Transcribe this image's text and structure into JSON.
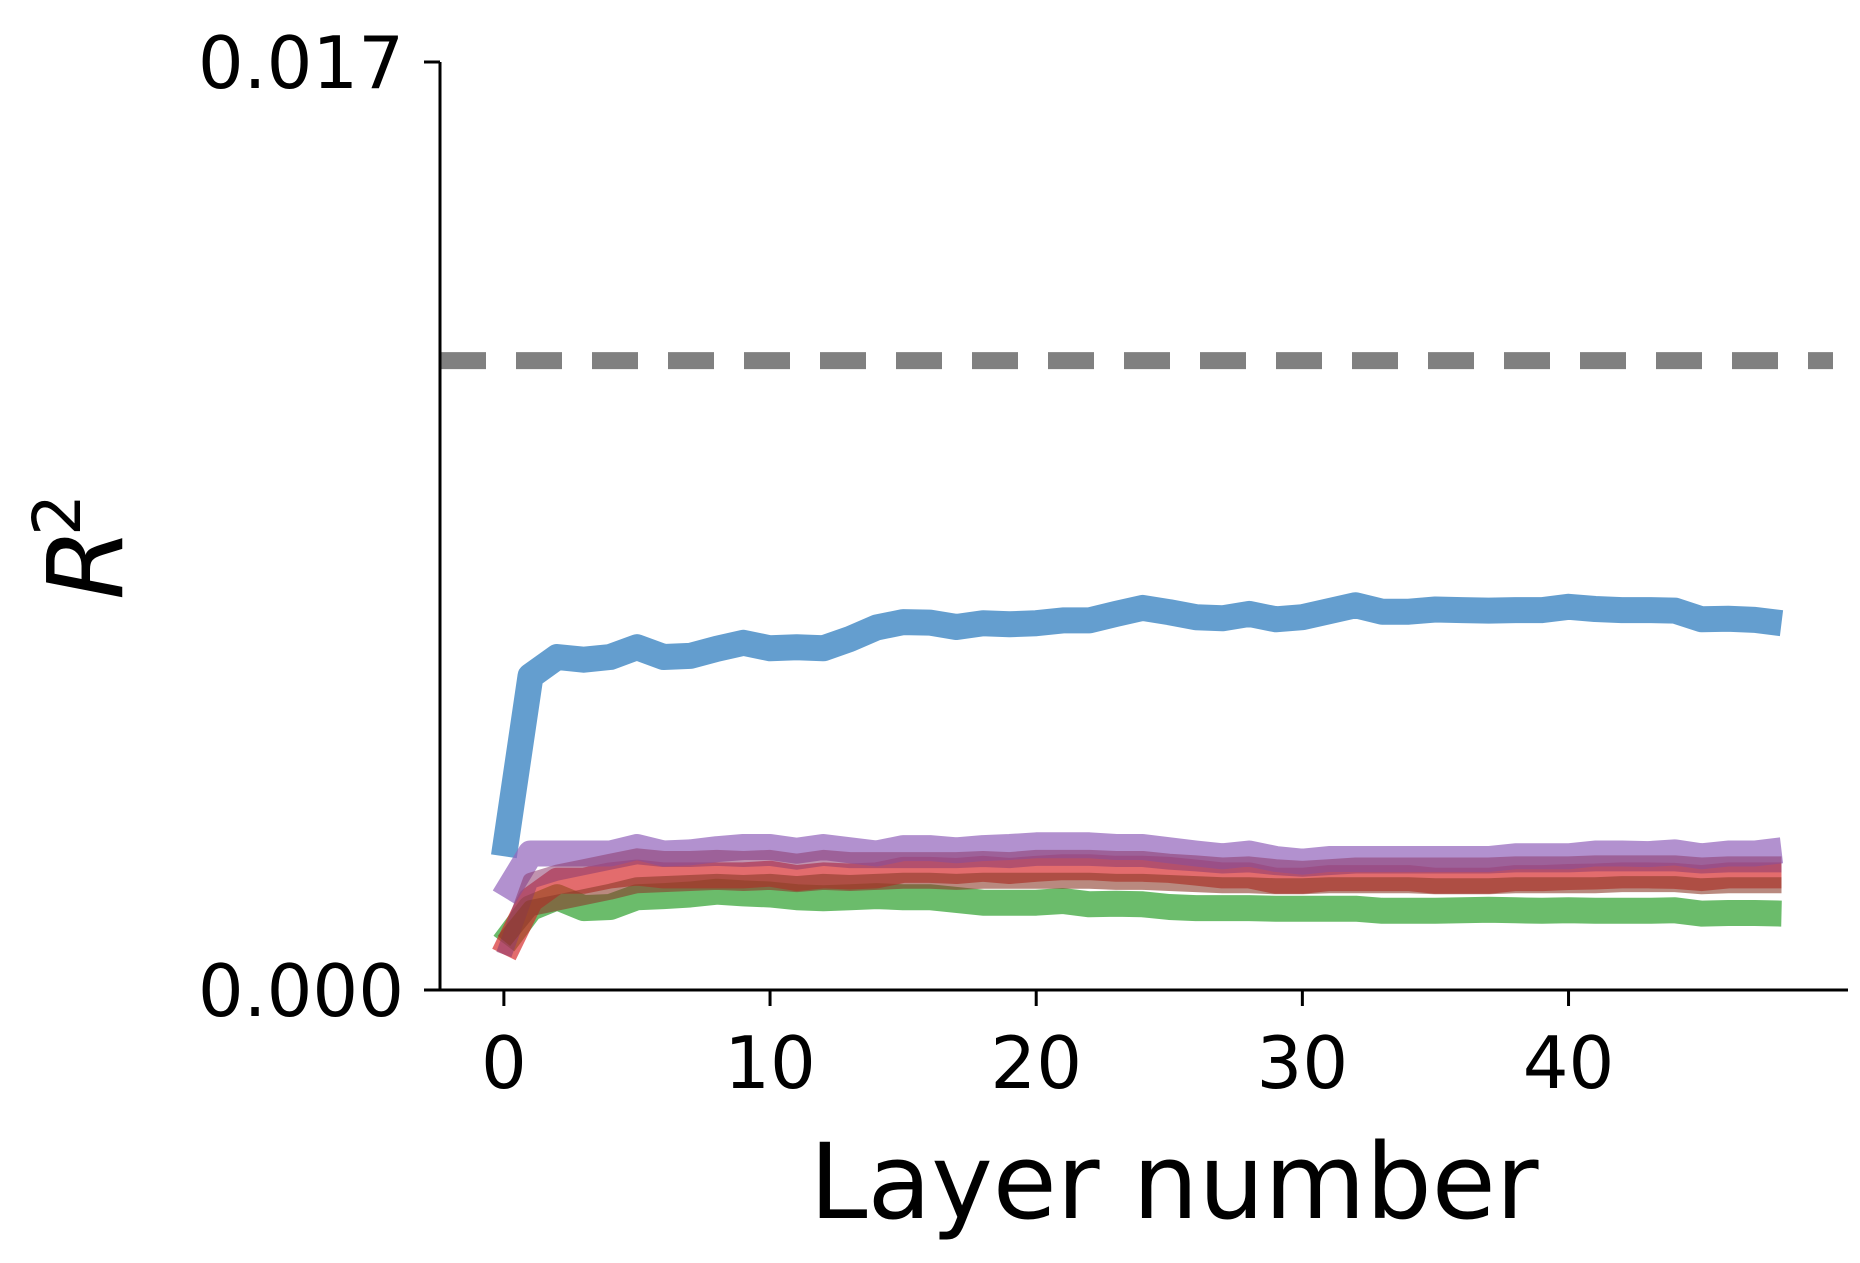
{
  "chart_data": {
    "type": "line",
    "title": "",
    "xlabel": "Layer number",
    "ylabel": {
      "base": "R",
      "sup": "2"
    },
    "xlim": [
      -2.4,
      50.5
    ],
    "ylim": [
      0.0,
      0.017
    ],
    "xticks": [
      0,
      10,
      20,
      30,
      40
    ],
    "xtick_labels": [
      "0",
      "10",
      "20",
      "30",
      "40"
    ],
    "yticks": [
      0.0,
      0.017
    ],
    "ytick_labels": [
      "0.000",
      "0.017"
    ],
    "grid": false,
    "legend": "none",
    "reference_line": {
      "y": 0.01153,
      "color": "#808080",
      "style": "dashed"
    },
    "x": [
      0,
      1,
      2,
      3,
      4,
      5,
      6,
      7,
      8,
      9,
      10,
      11,
      12,
      13,
      14,
      15,
      16,
      17,
      18,
      19,
      20,
      21,
      22,
      23,
      24,
      25,
      26,
      27,
      28,
      29,
      30,
      31,
      32,
      33,
      34,
      35,
      36,
      37,
      38,
      39,
      40,
      41,
      42,
      43,
      44,
      45,
      46,
      47,
      48
    ],
    "series": [
      {
        "color": "#2878bd",
        "opacity": 0.72,
        "values": [
          0.00245,
          0.00575,
          0.0061,
          0.00605,
          0.0061,
          0.00628,
          0.0061,
          0.00612,
          0.00625,
          0.00636,
          0.00626,
          0.00628,
          0.00626,
          0.00643,
          0.00664,
          0.00674,
          0.00673,
          0.00665,
          0.00672,
          0.0067,
          0.00672,
          0.00677,
          0.00677,
          0.00689,
          0.007,
          0.00692,
          0.00683,
          0.00681,
          0.00689,
          0.00679,
          0.00683,
          0.00694,
          0.00705,
          0.00693,
          0.00693,
          0.00697,
          0.00696,
          0.00695,
          0.00696,
          0.00696,
          0.00702,
          0.00698,
          0.00696,
          0.00696,
          0.00695,
          0.00679,
          0.0068,
          0.00678,
          0.00672
        ]
      },
      {
        "color": "#2ca02c",
        "opacity": 0.7,
        "values": [
          0.00085,
          0.0015,
          0.0017,
          0.0015,
          0.00152,
          0.0017,
          0.00172,
          0.00175,
          0.0018,
          0.00177,
          0.00175,
          0.0017,
          0.00168,
          0.0017,
          0.00172,
          0.0017,
          0.0017,
          0.00165,
          0.0016,
          0.0016,
          0.0016,
          0.00163,
          0.00157,
          0.00158,
          0.00157,
          0.00152,
          0.0015,
          0.0015,
          0.0015,
          0.00149,
          0.00149,
          0.00149,
          0.00149,
          0.00145,
          0.00145,
          0.00145,
          0.00146,
          0.00147,
          0.00146,
          0.00145,
          0.00146,
          0.00145,
          0.00145,
          0.00145,
          0.00146,
          0.0014,
          0.00141,
          0.00141,
          0.0014
        ]
      },
      {
        "color": "#d62728",
        "opacity": 0.68,
        "values": [
          0.00065,
          0.00165,
          0.002,
          0.002,
          0.0021,
          0.00215,
          0.0021,
          0.0021,
          0.0021,
          0.0021,
          0.00213,
          0.00205,
          0.0021,
          0.00208,
          0.0021,
          0.0022,
          0.0022,
          0.00218,
          0.00222,
          0.00218,
          0.00222,
          0.00225,
          0.00225,
          0.00222,
          0.00222,
          0.0022,
          0.00215,
          0.0021,
          0.0021,
          0.002,
          0.002,
          0.00205,
          0.00205,
          0.00205,
          0.00205,
          0.002,
          0.002,
          0.002,
          0.00205,
          0.00205,
          0.00207,
          0.00208,
          0.0021,
          0.0021,
          0.00209,
          0.00205,
          0.0021,
          0.0021,
          0.0021
        ]
      },
      {
        "color": "#9467bd",
        "opacity": 0.72,
        "values": [
          0.0017,
          0.0025,
          0.0025,
          0.0025,
          0.0025,
          0.00262,
          0.0025,
          0.00252,
          0.00258,
          0.00262,
          0.00262,
          0.00255,
          0.00262,
          0.00256,
          0.0025,
          0.0026,
          0.0026,
          0.00256,
          0.0026,
          0.00262,
          0.00265,
          0.00265,
          0.00265,
          0.00262,
          0.00262,
          0.00256,
          0.0025,
          0.00245,
          0.0025,
          0.0024,
          0.00235,
          0.0024,
          0.0024,
          0.0024,
          0.0024,
          0.0024,
          0.0024,
          0.0024,
          0.00245,
          0.00245,
          0.00245,
          0.0025,
          0.0025,
          0.00249,
          0.00252,
          0.00245,
          0.0025,
          0.0025,
          0.00256
        ]
      }
    ],
    "overlay_series": [
      {
        "color": "#8c3a6e",
        "opacity": 0.55,
        "values": [
          0.00065,
          0.002,
          0.00215,
          0.00225,
          0.00235,
          0.00245,
          0.0024,
          0.0024,
          0.00242,
          0.0024,
          0.00242,
          0.00235,
          0.00242,
          0.00238,
          0.00238,
          0.00238,
          0.00238,
          0.00238,
          0.0024,
          0.00238,
          0.00242,
          0.00242,
          0.00242,
          0.0024,
          0.0024,
          0.00235,
          0.00232,
          0.00228,
          0.0023,
          0.00225,
          0.00222,
          0.00225,
          0.00228,
          0.00228,
          0.00228,
          0.00228,
          0.00228,
          0.00228,
          0.0023,
          0.0023,
          0.0023,
          0.00232,
          0.00232,
          0.00232,
          0.00232,
          0.00228,
          0.0023,
          0.0023,
          0.0023
        ]
      },
      {
        "color": "#8b3a2a",
        "opacity": 0.6,
        "values": [
          0.0009,
          0.0015,
          0.0016,
          0.0017,
          0.0018,
          0.00192,
          0.00194,
          0.00196,
          0.00198,
          0.00196,
          0.00198,
          0.00194,
          0.00198,
          0.00196,
          0.00198,
          0.002,
          0.002,
          0.00198,
          0.002,
          0.002,
          0.002,
          0.002,
          0.002,
          0.00198,
          0.00198,
          0.00196,
          0.00194,
          0.00192,
          0.00192,
          0.0019,
          0.0019,
          0.00192,
          0.00192,
          0.00192,
          0.00192,
          0.0019,
          0.0019,
          0.0019,
          0.00192,
          0.00192,
          0.00192,
          0.00192,
          0.00194,
          0.00194,
          0.00194,
          0.0019,
          0.00192,
          0.00192,
          0.00192
        ]
      }
    ]
  }
}
